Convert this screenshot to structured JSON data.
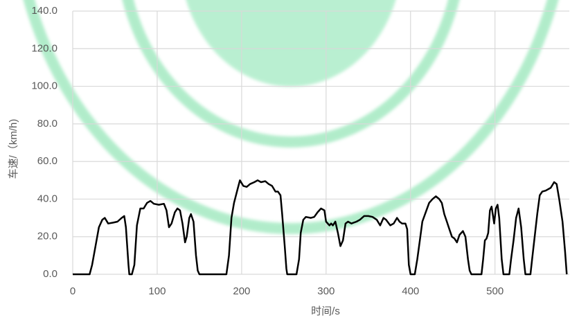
{
  "chart_data": {
    "type": "line",
    "xlabel": "时间/s",
    "ylabel": "车速/（km/h)",
    "x": [
      0,
      20,
      23,
      27,
      31,
      35,
      38,
      42,
      48,
      53,
      58,
      61,
      63,
      66,
      67,
      70,
      73,
      76,
      80,
      84,
      88,
      92,
      96,
      102,
      108,
      111,
      114,
      117,
      121,
      124,
      127,
      130,
      133,
      135,
      138,
      140,
      143,
      146,
      148,
      150,
      182,
      185,
      188,
      191,
      195,
      198,
      202,
      206,
      210,
      215,
      219,
      223,
      228,
      232,
      236,
      240,
      243,
      246,
      248,
      251,
      253,
      254,
      265,
      268,
      270,
      273,
      276,
      282,
      286,
      290,
      294,
      298,
      300,
      304,
      306,
      308,
      311,
      314,
      317,
      320,
      323,
      326,
      330,
      336,
      340,
      345,
      350,
      355,
      360,
      364,
      368,
      371,
      376,
      380,
      384,
      387,
      390,
      394,
      396,
      398,
      400,
      405,
      408,
      411,
      414,
      418,
      422,
      426,
      430,
      434,
      437,
      440,
      443,
      446,
      449,
      452,
      455,
      458,
      462,
      465,
      468,
      470,
      472,
      484,
      486,
      488,
      490,
      492,
      494,
      496,
      499,
      501,
      503,
      505,
      508,
      510,
      517,
      519,
      522,
      525,
      528,
      531,
      534,
      536,
      542,
      544,
      547,
      550,
      553,
      556,
      560,
      566,
      570,
      573,
      576,
      580,
      583,
      585
    ],
    "series": [
      {
        "name": "车速",
        "color": "#000000",
        "values": [
          0,
          0,
          5,
          15,
          25,
          29,
          30,
          27,
          27.5,
          28,
          30,
          31,
          25,
          5,
          0,
          0,
          5,
          26,
          35,
          35,
          38,
          39,
          37.5,
          37,
          37.5,
          34,
          25,
          27,
          33,
          35,
          34,
          27,
          17,
          20,
          30,
          32,
          28,
          10,
          2,
          0,
          0,
          10,
          30,
          38,
          45,
          50,
          47,
          46.5,
          48,
          49,
          50,
          49,
          49.5,
          48,
          47,
          44,
          44,
          42,
          32,
          15,
          3,
          0,
          0,
          8,
          22,
          29,
          30.5,
          30,
          30.5,
          33,
          35,
          34,
          28,
          26,
          27,
          26,
          28,
          22,
          15,
          18,
          27,
          28,
          27,
          28,
          29,
          31,
          31,
          30.5,
          29,
          26,
          30,
          29,
          26,
          27,
          30,
          28,
          27,
          27,
          24,
          5,
          0,
          0,
          8,
          18,
          28,
          33,
          38,
          40,
          41.5,
          40,
          38,
          32,
          28,
          24,
          20,
          19,
          17,
          21,
          23,
          20,
          8,
          2,
          0,
          0,
          8,
          18,
          19,
          22,
          34,
          36,
          27,
          35,
          37,
          30,
          8,
          0,
          0,
          8,
          18,
          30,
          35,
          25,
          8,
          0,
          0,
          8,
          20,
          32,
          42,
          44,
          44.5,
          46,
          49,
          48,
          40,
          28,
          12,
          0
        ]
      }
    ],
    "xlim": [
      0,
      588
    ],
    "xticks": [
      0,
      100,
      200,
      300,
      400,
      500
    ],
    "ylim": [
      0,
      140
    ],
    "yticks": [
      {
        "value": 0,
        "label": "0.0"
      },
      {
        "value": 20,
        "label": "20.0"
      },
      {
        "value": 40,
        "label": "40.0"
      },
      {
        "value": 60,
        "label": "60.0"
      },
      {
        "value": 80,
        "label": "80.0"
      },
      {
        "value": 100,
        "label": "100.0"
      },
      {
        "value": 120,
        "label": "120.0"
      },
      {
        "value": 140,
        "label": "140.0"
      }
    ],
    "grid": true
  }
}
